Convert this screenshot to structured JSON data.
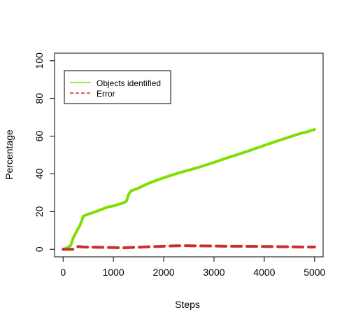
{
  "chart_data": {
    "type": "line",
    "title": "",
    "xlabel": "Steps",
    "ylabel": "Percentage",
    "xlim": [
      -170,
      5170
    ],
    "ylim": [
      -4,
      104
    ],
    "xticks": [
      0,
      1000,
      2000,
      3000,
      4000,
      5000
    ],
    "yticks": [
      0,
      20,
      40,
      60,
      80,
      100
    ],
    "grid": false,
    "legend_position": "top-left",
    "series": [
      {
        "name": "Objects identified",
        "color": "#7ee000",
        "style": "solid",
        "x": [
          0,
          100,
          150,
          200,
          260,
          300,
          340,
          370,
          400,
          480,
          600,
          700,
          800,
          900,
          1000,
          1100,
          1200,
          1260,
          1300,
          1350,
          1500,
          1700,
          1900,
          2100,
          2300,
          2500,
          2700,
          2900,
          3100,
          3300,
          3500,
          3700,
          3900,
          4100,
          4300,
          4500,
          4700,
          4850,
          5000
        ],
        "y": [
          0,
          1,
          2,
          6,
          9,
          11,
          13,
          15,
          17.5,
          18.5,
          19.5,
          20.5,
          21.5,
          22.5,
          23,
          23.8,
          24.6,
          25.5,
          29,
          31,
          32.5,
          35,
          37,
          38.8,
          40.5,
          42,
          43.5,
          45.2,
          47,
          48.8,
          50.5,
          52.3,
          54.2,
          56,
          57.8,
          59.5,
          61.3,
          62.3,
          63.5
        ]
      },
      {
        "name": "Error",
        "color": "#c8302c",
        "style": "dashed",
        "x": [
          0,
          100,
          200,
          300,
          400,
          600,
          800,
          1000,
          1200,
          1500,
          1800,
          2100,
          2400,
          2700,
          3000,
          3300,
          3600,
          3900,
          4200,
          4500,
          4800,
          5000
        ],
        "y": [
          0,
          0,
          0,
          1.5,
          1.2,
          1.1,
          1.0,
          0.9,
          0.8,
          1.1,
          1.4,
          1.7,
          1.9,
          1.8,
          1.7,
          1.6,
          1.6,
          1.5,
          1.4,
          1.3,
          1.2,
          1.2
        ]
      }
    ]
  }
}
